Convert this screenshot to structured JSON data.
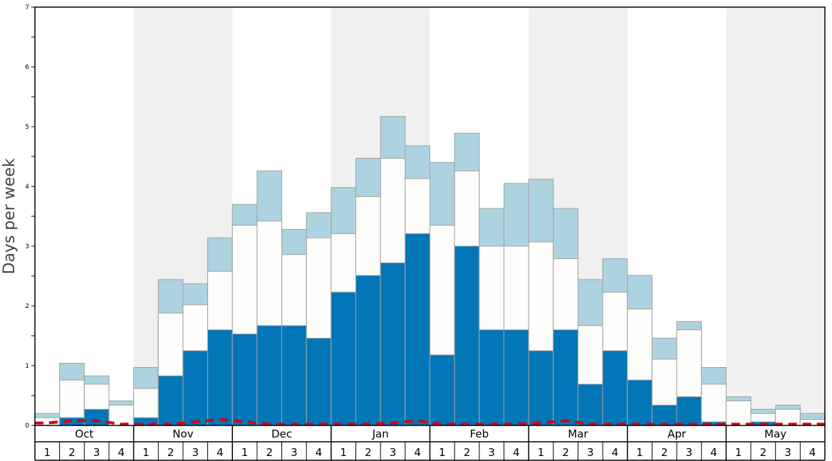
{
  "chart_data": {
    "type": "bar",
    "ylabel": "Days per week",
    "ylim": [
      0,
      7
    ],
    "yticks": [
      "0",
      "1",
      "2",
      "3",
      "4",
      "5",
      "6",
      "7"
    ],
    "months": [
      "Oct",
      "Nov",
      "Dec",
      "Jan",
      "Feb",
      "Mar",
      "Apr",
      "May"
    ],
    "week_labels": [
      "1",
      "2",
      "3",
      "4"
    ],
    "colors": {
      "lower": "#0276b6",
      "middle": "#fdfdfc",
      "upper": "#aed3e0",
      "line": "#d0021b",
      "shade": "#f0f0f0"
    },
    "series": [
      {
        "name": "",
        "values": [
          0.0,
          0.13,
          0.27,
          0.0,
          0.13,
          0.83,
          1.25,
          1.6,
          1.53,
          1.67,
          1.67,
          1.46,
          2.23,
          2.51,
          2.72,
          3.21,
          1.18,
          3.0,
          1.6,
          1.6,
          1.25,
          1.6,
          0.69,
          1.25,
          0.76,
          0.34,
          0.48,
          0.06,
          0.0,
          0.06,
          0.0,
          0.0
        ]
      },
      {
        "name": "",
        "values": [
          0.13,
          0.76,
          0.69,
          0.34,
          0.62,
          1.88,
          2.02,
          2.58,
          3.35,
          3.42,
          2.86,
          3.14,
          3.21,
          3.83,
          4.47,
          4.13,
          3.35,
          4.26,
          3.0,
          3.0,
          3.07,
          2.79,
          1.67,
          2.23,
          1.95,
          1.11,
          1.6,
          0.69,
          0.41,
          0.2,
          0.27,
          0.1
        ]
      },
      {
        "name": "",
        "values": [
          0.2,
          1.04,
          0.83,
          0.41,
          0.97,
          2.44,
          2.37,
          3.14,
          3.7,
          4.26,
          3.28,
          3.56,
          3.98,
          4.47,
          5.17,
          4.68,
          4.4,
          4.89,
          3.63,
          4.05,
          4.12,
          3.63,
          2.44,
          2.79,
          2.51,
          1.46,
          1.74,
          0.97,
          0.48,
          0.27,
          0.34,
          0.2
        ]
      },
      {
        "name": "",
        "values": [
          0.04,
          0.08,
          0.08,
          0.02,
          0.02,
          0.02,
          0.06,
          0.1,
          0.06,
          0.02,
          0.02,
          0.02,
          0.02,
          0.02,
          0.04,
          0.08,
          0.02,
          0.02,
          0.02,
          0.02,
          0.04,
          0.08,
          0.02,
          0.02,
          0.02,
          0.02,
          0.02,
          0.02,
          0.02,
          0.02,
          0.02,
          0.02
        ]
      }
    ]
  }
}
